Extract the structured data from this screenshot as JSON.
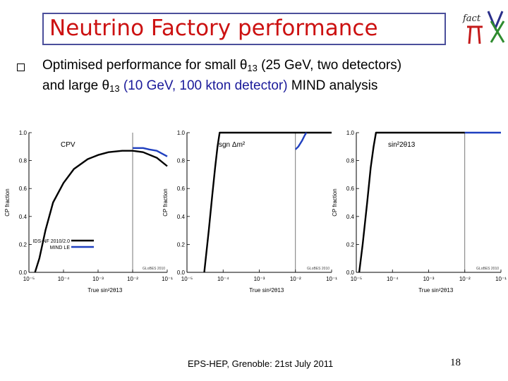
{
  "slide": {
    "title": "Neutrino Factory performance",
    "logo_text": "fact",
    "bullet": {
      "part1": "Optimised performance for small ",
      "theta": "θ",
      "sub1": "13",
      "part2": " (25 GeV, two detectors)",
      "line2_start": "and large ",
      "sub2": "13",
      "part3": " (10 GeV, 100 kton detector)",
      "part4": " MIND analysis"
    },
    "footer": "EPS-HEP, Grenoble: 21st July 2011",
    "page_number": "18"
  },
  "colors": {
    "title": "#cc1111",
    "title_border": "#4b4f9b",
    "series_ids": "#000000",
    "series_mind": "#1f3fbf"
  },
  "chart_data": [
    {
      "type": "line",
      "panel_label": "CPV",
      "xlabel": "True sin²2θ13",
      "ylabel": "CP fraction",
      "xscale": "log",
      "xlim": [
        1e-05,
        0.1
      ],
      "ylim": [
        0,
        1
      ],
      "x_ticks": [
        "10⁻⁵",
        "10⁻⁴",
        "10⁻³",
        "10⁻²",
        "10⁻¹"
      ],
      "y_ticks": [
        "0.0",
        "0.2",
        "0.4",
        "0.6",
        "0.8",
        "1.0"
      ],
      "watermark": "GLoBES 2010",
      "divider_x": 0.01,
      "legend": [
        "IDS-NF 2010/2.0",
        "MIND LE"
      ],
      "series": [
        {
          "name": "IDS-NF 2010/2.0",
          "color": "#000000",
          "x": [
            1.5e-05,
            2e-05,
            3e-05,
            5e-05,
            0.0001,
            0.0002,
            0.0005,
            0.001,
            0.002,
            0.005,
            0.01,
            0.02,
            0.05,
            0.1
          ],
          "y": [
            0.0,
            0.1,
            0.3,
            0.5,
            0.64,
            0.74,
            0.81,
            0.84,
            0.86,
            0.87,
            0.87,
            0.86,
            0.82,
            0.76
          ]
        },
        {
          "name": "MIND LE",
          "color": "#1f3fbf",
          "x": [
            0.01,
            0.02,
            0.03,
            0.05,
            0.1
          ],
          "y": [
            0.89,
            0.89,
            0.88,
            0.87,
            0.83
          ]
        }
      ]
    },
    {
      "type": "line",
      "panel_label": "sgn Δm²",
      "xlabel": "True sin²2θ13",
      "ylabel": "CP fraction",
      "xscale": "log",
      "xlim": [
        1e-05,
        0.1
      ],
      "ylim": [
        0,
        1
      ],
      "x_ticks": [
        "10⁻⁵",
        "10⁻⁴",
        "10⁻³",
        "10⁻²",
        "10⁻¹"
      ],
      "y_ticks": [
        "0.0",
        "0.2",
        "0.4",
        "0.6",
        "0.8",
        "1.0"
      ],
      "watermark": "GLoBES 2010",
      "divider_x": 0.01,
      "series": [
        {
          "name": "IDS-NF 2010/2.0",
          "color": "#000000",
          "x": [
            3e-05,
            4e-05,
            5e-05,
            6e-05,
            7e-05,
            8e-05,
            0.1
          ],
          "y": [
            0.0,
            0.3,
            0.55,
            0.75,
            0.9,
            1.0,
            1.0
          ]
        },
        {
          "name": "MIND LE",
          "color": "#1f3fbf",
          "x": [
            0.01,
            0.012,
            0.015,
            0.018,
            0.02
          ],
          "y": [
            0.88,
            0.9,
            0.94,
            0.98,
            1.0
          ]
        }
      ]
    },
    {
      "type": "line",
      "panel_label": "sin²2θ13",
      "xlabel": "True sin²2θ13",
      "ylabel": "CP fraction",
      "xscale": "log",
      "xlim": [
        1e-05,
        0.1
      ],
      "ylim": [
        0,
        1
      ],
      "x_ticks": [
        "10⁻⁵",
        "10⁻⁴",
        "10⁻³",
        "10⁻²",
        "10⁻¹"
      ],
      "y_ticks": [
        "0.0",
        "0.2",
        "0.4",
        "0.6",
        "0.8",
        "1.0"
      ],
      "watermark": "GLoBES 2010",
      "divider_x": 0.01,
      "series": [
        {
          "name": "IDS-NF 2010/2.0",
          "color": "#000000",
          "x": [
            1.2e-05,
            1.5e-05,
            2e-05,
            2.5e-05,
            3e-05,
            3.5e-05,
            0.01
          ],
          "y": [
            0.0,
            0.2,
            0.5,
            0.75,
            0.9,
            1.0,
            1.0
          ]
        },
        {
          "name": "MIND LE",
          "color": "#1f3fbf",
          "x": [
            0.01,
            0.1
          ],
          "y": [
            1.0,
            1.0
          ]
        }
      ]
    }
  ]
}
